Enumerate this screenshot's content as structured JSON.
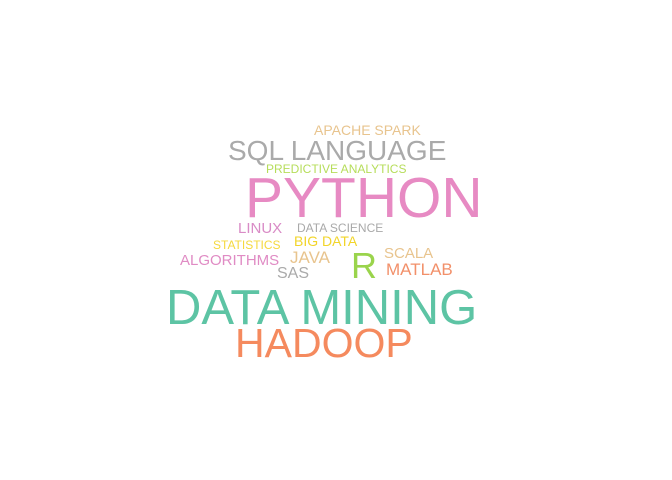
{
  "words": {
    "apache_spark": {
      "text": "APACHE SPARK",
      "color": "#e8c48e"
    },
    "sql_language": {
      "text": "SQL LANGUAGE",
      "color": "#aaaaaa"
    },
    "predictive_analytics": {
      "text": "PREDICTIVE ANALYTICS",
      "color": "#b6dd5a"
    },
    "python": {
      "text": "PYTHON",
      "color": "#e78ac3"
    },
    "linux": {
      "text": "LINUX",
      "color": "#d98bc6"
    },
    "data_science": {
      "text": "DATA SCIENCE",
      "color": "#a9a9a9"
    },
    "statistics": {
      "text": "STATISTICS",
      "color": "#f5d93d"
    },
    "big_data": {
      "text": "BIG DATA",
      "color": "#f2d52a"
    },
    "scala": {
      "text": "SCALA",
      "color": "#e8c48e"
    },
    "java": {
      "text": "JAVA",
      "color": "#e8c48e"
    },
    "r": {
      "text": "R",
      "color": "#9ad44c"
    },
    "algorithms": {
      "text": "ALGORITHMS",
      "color": "#e08bc4"
    },
    "matlab": {
      "text": "MATLAB",
      "color": "#f2906a"
    },
    "sas": {
      "text": "SAS",
      "color": "#aaaaaa"
    },
    "data_mining": {
      "text": "DATA MINING",
      "color": "#5dc4a4"
    },
    "hadoop": {
      "text": "HADOOP",
      "color": "#f58a5e"
    }
  }
}
